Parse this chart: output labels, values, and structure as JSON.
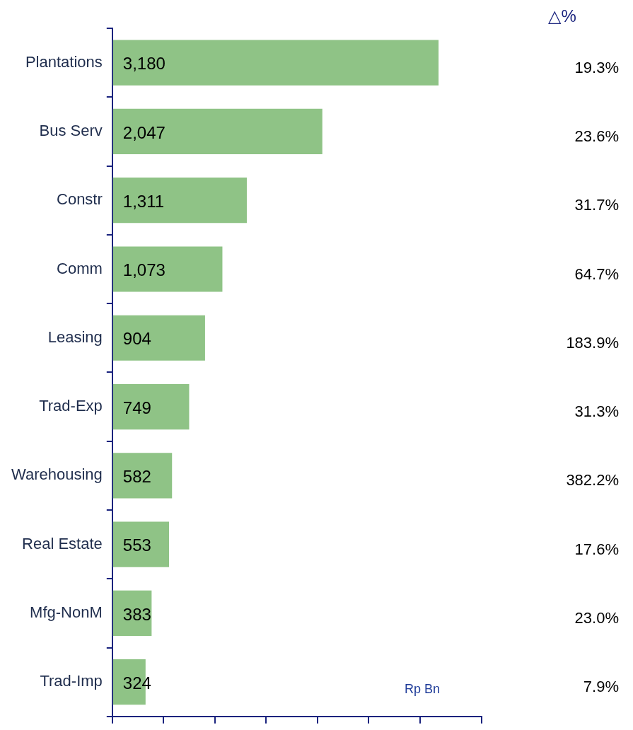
{
  "chart_data": {
    "type": "bar",
    "orientation": "horizontal",
    "categories": [
      "Plantations",
      "Bus Serv",
      "Constr",
      "Comm",
      "Leasing",
      "Trad-Exp",
      "Warehousing",
      "Real Estate",
      "Mfg-NonM",
      "Trad-Imp"
    ],
    "values": [
      3180,
      2047,
      1311,
      1073,
      904,
      749,
      582,
      553,
      383,
      324
    ],
    "value_labels": [
      "3,180",
      "2,047",
      "1,311",
      "1,073",
      "904",
      "749",
      "582",
      "553",
      "383",
      "324"
    ],
    "color": "#8fc386",
    "xlim": [
      0,
      3600
    ],
    "tick_labels": "y",
    "grid": false,
    "legend": false,
    "annotations": [
      "△%",
      "Rp Bn",
      "19.3%",
      "23.6%",
      "31.7%",
      "64.7%",
      "183.9%",
      "31.3%",
      "382.2%",
      "17.6%",
      "23.0%",
      "7.9%"
    ]
  }
}
